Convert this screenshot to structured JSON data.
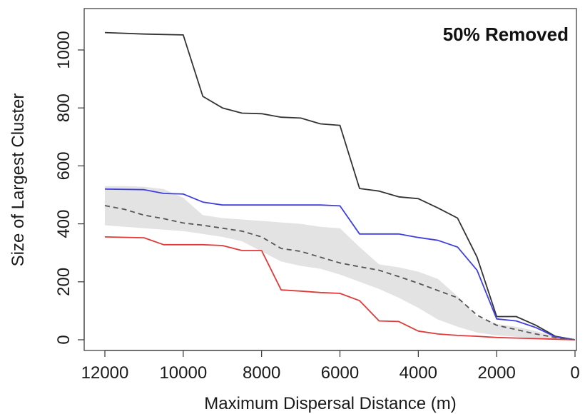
{
  "chart_data": {
    "type": "line",
    "title": "",
    "annotation": "50% Removed",
    "xlabel": "Maximum Dispersal Distance (m)",
    "ylabel": "Size of Largest Cluster",
    "xlim": [
      12000,
      0
    ],
    "ylim": [
      0,
      1060
    ],
    "x_reversed": true,
    "xticks": [
      12000,
      10000,
      8000,
      6000,
      4000,
      2000,
      0
    ],
    "xtick_labels": [
      "12000",
      "10000",
      "8000",
      "6000",
      "4000",
      "2000",
      "0"
    ],
    "yticks": [
      0,
      200,
      400,
      600,
      800,
      1000
    ],
    "ytick_labels": [
      "0",
      "200",
      "400",
      "600",
      "800",
      "1000"
    ],
    "grid": false,
    "legend": "none",
    "band": {
      "color": "#e3e3e3",
      "x": [
        12000,
        11500,
        11000,
        10500,
        10000,
        9500,
        9000,
        8500,
        8000,
        7500,
        7000,
        6500,
        6000,
        5500,
        5000,
        4500,
        4000,
        3500,
        3000,
        2500,
        2000,
        1500,
        1000,
        500,
        0
      ],
      "upper": [
        530,
        530,
        528,
        520,
        490,
        430,
        420,
        415,
        410,
        405,
        400,
        390,
        385,
        320,
        260,
        250,
        235,
        210,
        150,
        80,
        55,
        45,
        30,
        10,
        0
      ],
      "lower": [
        395,
        390,
        385,
        380,
        375,
        365,
        355,
        340,
        305,
        270,
        255,
        245,
        225,
        200,
        175,
        145,
        110,
        70,
        45,
        25,
        15,
        10,
        5,
        2,
        0
      ]
    },
    "series": [
      {
        "color": "#333333",
        "dashed": false,
        "x": [
          12000,
          11000,
          10000,
          9500,
          9000,
          8500,
          8000,
          7500,
          7000,
          6500,
          6000,
          5500,
          5000,
          4500,
          4000,
          3500,
          3000,
          2500,
          2000,
          1500,
          1000,
          500,
          0
        ],
        "y": [
          1060,
          1055,
          1052,
          840,
          800,
          782,
          780,
          768,
          765,
          745,
          740,
          522,
          513,
          493,
          487,
          455,
          420,
          285,
          80,
          80,
          50,
          12,
          0
        ]
      },
      {
        "color": "#3f3fe0",
        "dashed": false,
        "x": [
          12000,
          11000,
          10500,
          10000,
          9500,
          9000,
          8500,
          8000,
          7500,
          7000,
          6500,
          6000,
          5500,
          5000,
          4500,
          4000,
          3500,
          3000,
          2500,
          2000,
          1500,
          1000,
          500,
          0
        ],
        "y": [
          520,
          518,
          505,
          503,
          475,
          465,
          465,
          465,
          465,
          465,
          465,
          462,
          365,
          365,
          365,
          353,
          343,
          320,
          240,
          72,
          65,
          42,
          10,
          0
        ]
      },
      {
        "color": "#e03a3a",
        "dashed": false,
        "x": [
          12000,
          11000,
          10500,
          10000,
          9500,
          9000,
          8500,
          8000,
          7500,
          7000,
          6500,
          6000,
          5500,
          5000,
          4500,
          4000,
          3500,
          3000,
          2500,
          2000,
          1500,
          1000,
          500,
          0
        ],
        "y": [
          355,
          352,
          328,
          328,
          328,
          325,
          308,
          308,
          172,
          168,
          163,
          160,
          135,
          65,
          63,
          30,
          20,
          15,
          12,
          8,
          6,
          4,
          2,
          0
        ]
      },
      {
        "color": "#555555",
        "dashed": true,
        "x": [
          12000,
          11500,
          11000,
          10500,
          10000,
          9500,
          9000,
          8500,
          8000,
          7500,
          7000,
          6500,
          6000,
          5500,
          5000,
          4500,
          4000,
          3500,
          3000,
          2500,
          2000,
          1500,
          1000,
          500,
          0
        ],
        "y": [
          463,
          450,
          430,
          418,
          403,
          395,
          385,
          375,
          355,
          315,
          305,
          285,
          265,
          252,
          240,
          218,
          195,
          170,
          145,
          85,
          50,
          35,
          20,
          8,
          0
        ]
      }
    ]
  }
}
